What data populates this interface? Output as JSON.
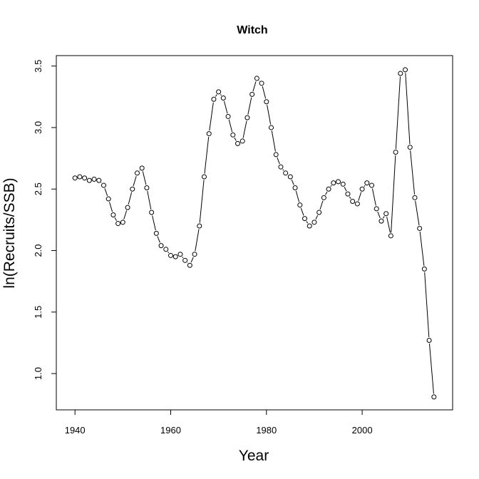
{
  "chart_data": {
    "type": "line",
    "title": "Witch",
    "xlabel": "Year",
    "ylabel": "ln(Recruits/SSB)",
    "xlim": [
      1936.1,
      2018.9
    ],
    "ylim": [
      0.705,
      3.585
    ],
    "x_ticks": [
      1940,
      1960,
      1980,
      2000
    ],
    "x_tick_labels": [
      "1940",
      "1960",
      "1980",
      "2000"
    ],
    "y_ticks": [
      1.0,
      1.5,
      2.0,
      2.5,
      3.0,
      3.5
    ],
    "y_tick_labels": [
      "1.0",
      "1.5",
      "2.0",
      "2.5",
      "3.0",
      "3.5"
    ],
    "grid": false,
    "legend": "none",
    "marker": "open-circle",
    "series": [
      {
        "x": [
          1940,
          1941,
          1942,
          1943,
          1944,
          1945,
          1946,
          1947,
          1948,
          1949,
          1950,
          1951,
          1952,
          1953,
          1954,
          1955,
          1956,
          1957,
          1958,
          1959,
          1960,
          1961,
          1962,
          1963,
          1964,
          1965,
          1966,
          1967,
          1968,
          1969,
          1970,
          1971,
          1972,
          1973,
          1974,
          1975,
          1976,
          1977,
          1978,
          1979,
          1980,
          1981,
          1982,
          1983,
          1984,
          1985,
          1986,
          1987,
          1988,
          1989,
          1990,
          1991,
          1992,
          1993,
          1994,
          1995,
          1996,
          1997,
          1998,
          1999,
          2000,
          2001,
          2002,
          2003,
          2004,
          2005,
          2006,
          2007,
          2008,
          2009,
          2010,
          2011,
          2012,
          2013,
          2014,
          2015
        ],
        "y": [
          2.59,
          2.6,
          2.59,
          2.57,
          2.58,
          2.57,
          2.53,
          2.42,
          2.29,
          2.22,
          2.23,
          2.35,
          2.5,
          2.63,
          2.67,
          2.51,
          2.31,
          2.14,
          2.04,
          2.01,
          1.96,
          1.95,
          1.97,
          1.92,
          1.88,
          1.97,
          2.2,
          2.6,
          2.95,
          3.23,
          3.29,
          3.24,
          3.09,
          2.94,
          2.87,
          2.89,
          3.08,
          3.27,
          3.4,
          3.36,
          3.21,
          3.0,
          2.78,
          2.68,
          2.63,
          2.6,
          2.51,
          2.37,
          2.26,
          2.2,
          2.23,
          2.31,
          2.43,
          2.5,
          2.55,
          2.56,
          2.54,
          2.46,
          2.4,
          2.38,
          2.5,
          2.55,
          2.53,
          2.34,
          2.24,
          2.3,
          2.12,
          2.8,
          3.44,
          3.47,
          2.84,
          2.43,
          2.18,
          1.85,
          1.27,
          0.81
        ]
      }
    ]
  }
}
